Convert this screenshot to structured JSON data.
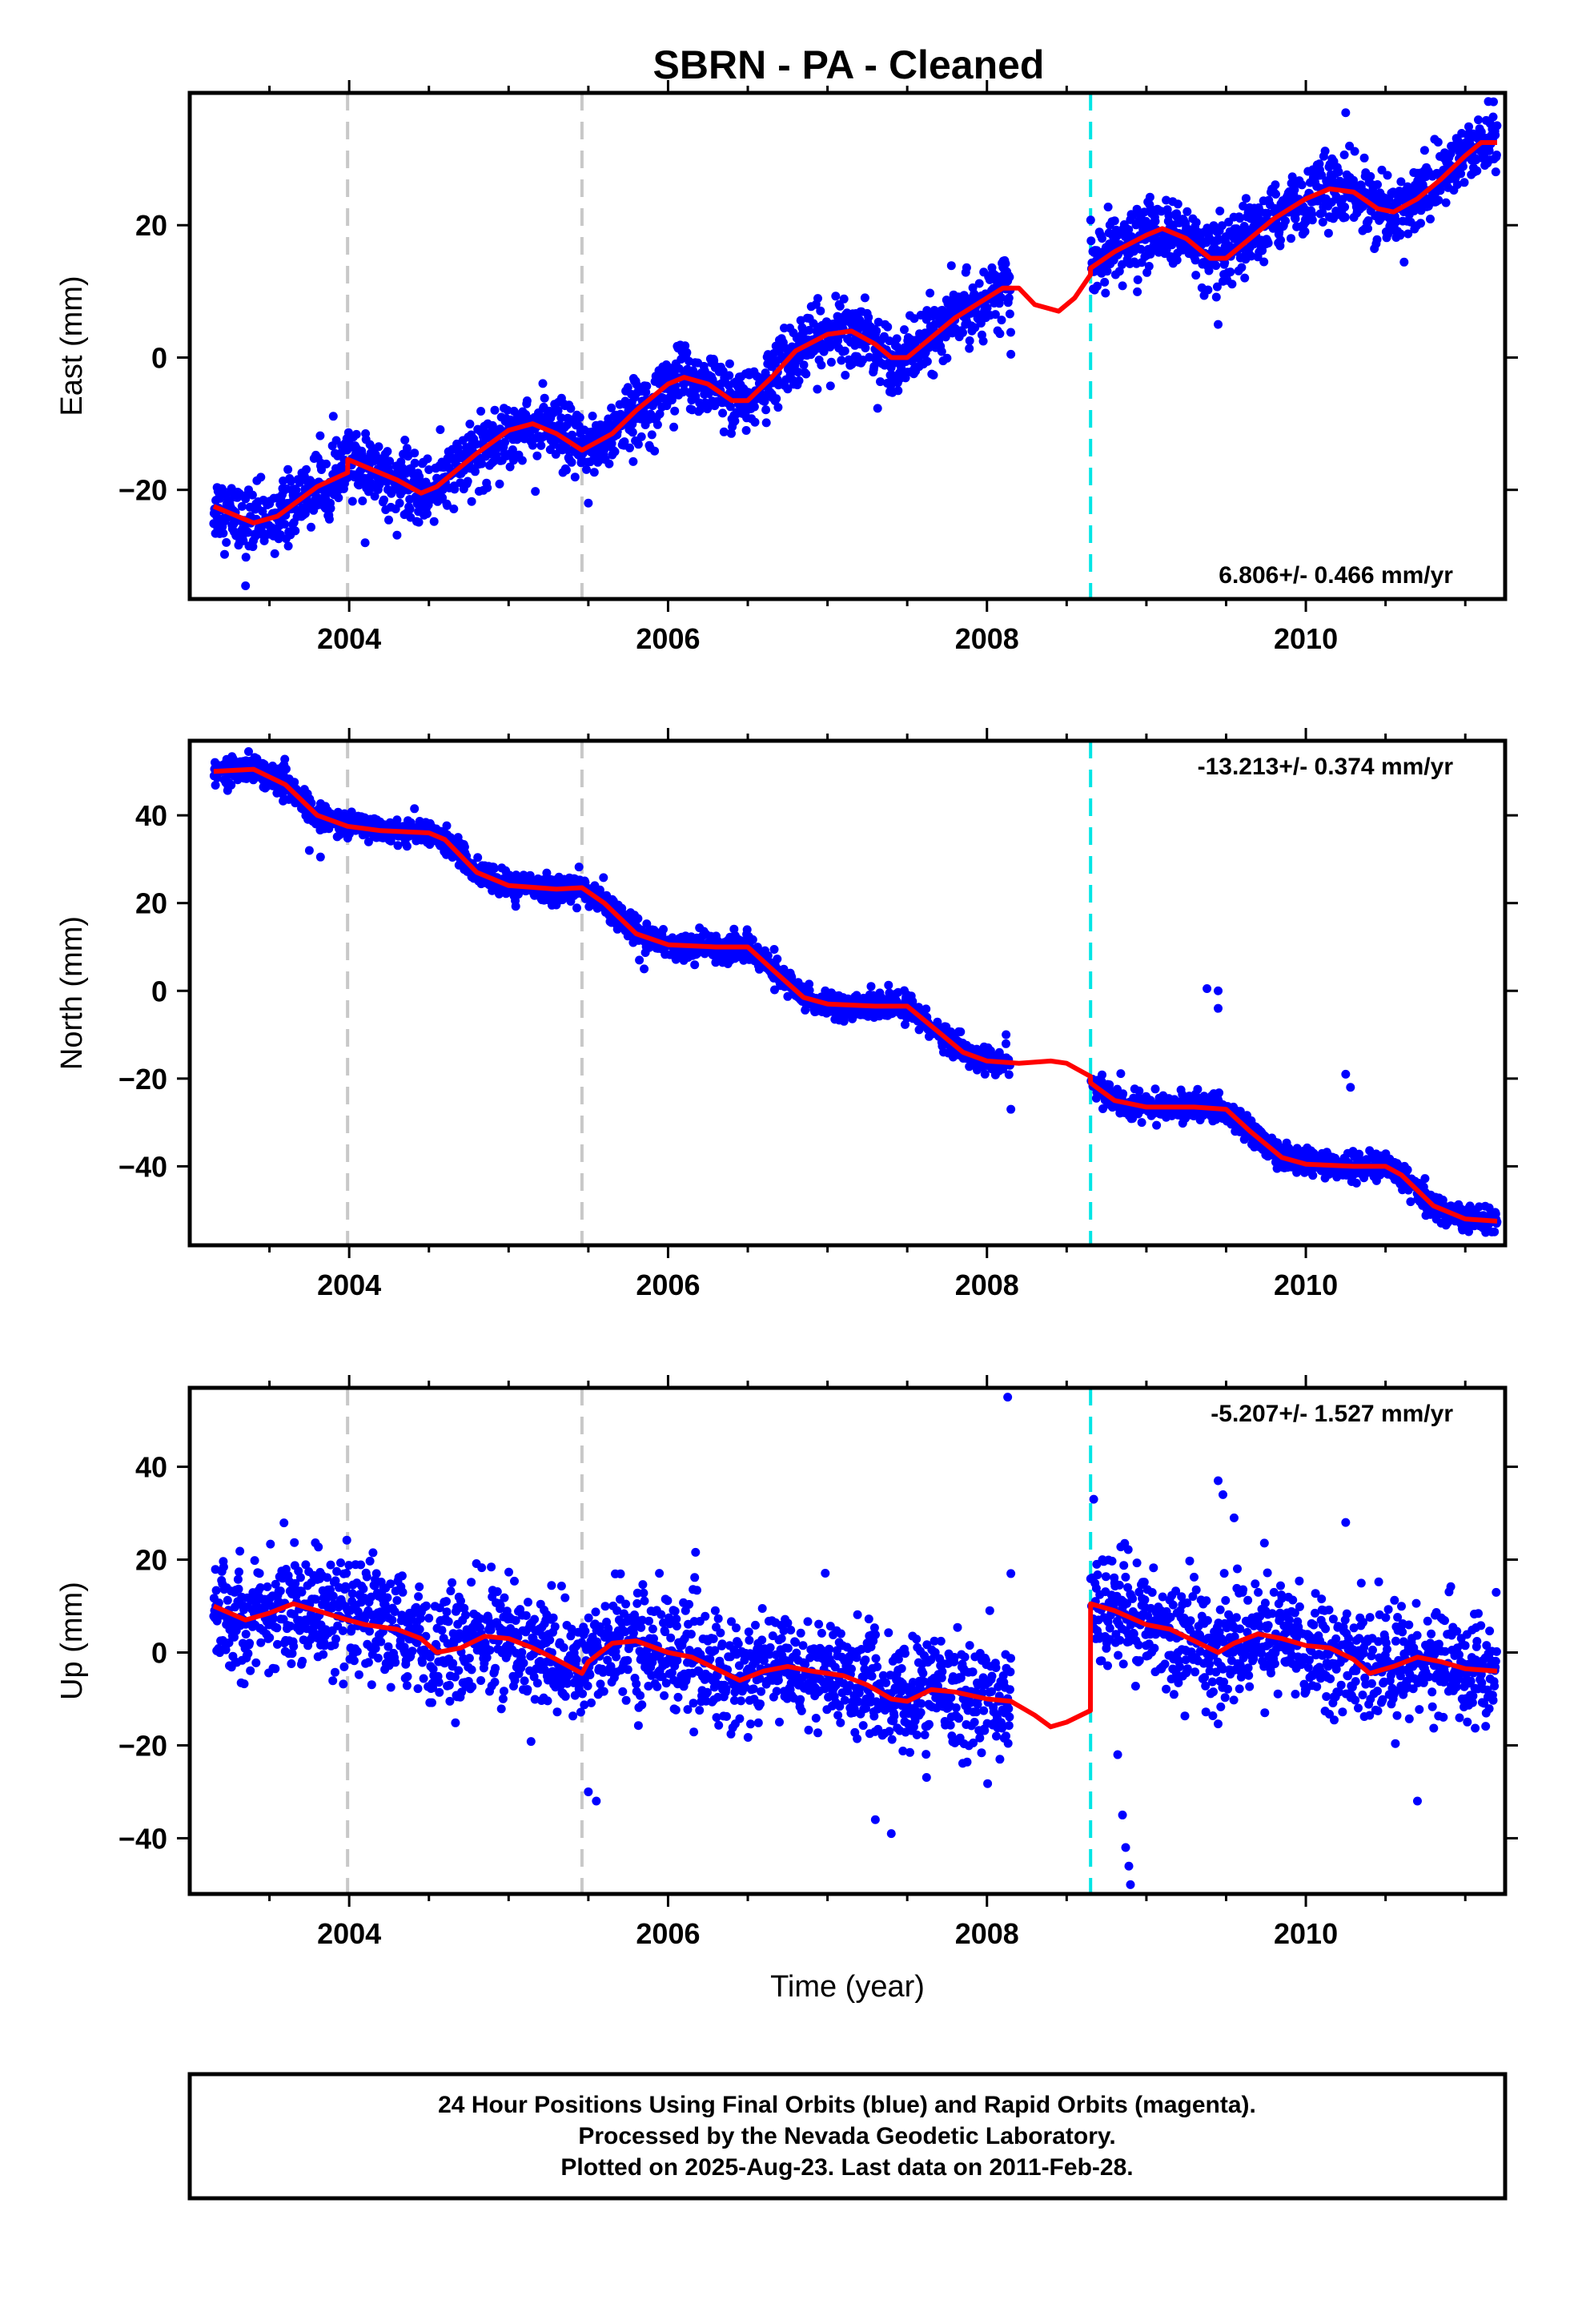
{
  "title": "SBRN  - PA - Cleaned",
  "colors": {
    "points": "#0000ff",
    "model": "#ff0000",
    "offset_equipment": "#c8c8c8",
    "offset_earthquake": "#00e5e5"
  },
  "chart_data": [
    {
      "type": "scatter",
      "panel": "east",
      "ylabel": "East (mm)",
      "xlabel": "",
      "xlim": [
        2003.0,
        2011.25
      ],
      "ylim": [
        -36.5,
        40
      ],
      "xticks": [
        2004,
        2006,
        2008,
        2010
      ],
      "xtick_labels": [
        "2004",
        "2006",
        "2008",
        "2010"
      ],
      "yticks": [
        -20,
        0,
        20
      ],
      "ytick_labels": [
        "−20",
        "0",
        "20"
      ],
      "rate_label": "6.806+/- 0.466 mm/yr",
      "gray_lines": [
        2003.99,
        2005.46
      ],
      "cyan_lines": [
        2008.65
      ],
      "data_gap": [
        2008.15,
        2008.65
      ],
      "scatter": {
        "sigma": 2.5,
        "outliers": [
          [
            2004.1,
            -28
          ],
          [
            2003.35,
            -34.5
          ],
          [
            2005.5,
            -22
          ],
          [
            2008.15,
            0.5
          ],
          [
            2009.45,
            5
          ],
          [
            2010.25,
            37
          ]
        ]
      },
      "model": [
        [
          2003.15,
          -22.5
        ],
        [
          2003.4,
          -25
        ],
        [
          2003.55,
          -24
        ],
        [
          2003.8,
          -19.5
        ],
        [
          2003.99,
          -17.4
        ],
        [
          2003.991,
          -15.4
        ],
        [
          2004.1,
          -16.5
        ],
        [
          2004.3,
          -18.5
        ],
        [
          2004.45,
          -20.5
        ],
        [
          2004.55,
          -19.5
        ],
        [
          2004.8,
          -14.5
        ],
        [
          2005.0,
          -11
        ],
        [
          2005.15,
          -10
        ],
        [
          2005.3,
          -11.5
        ],
        [
          2005.46,
          -14
        ],
        [
          2005.65,
          -11.5
        ],
        [
          2005.8,
          -8
        ],
        [
          2006.0,
          -4
        ],
        [
          2006.1,
          -3
        ],
        [
          2006.25,
          -4
        ],
        [
          2006.4,
          -6.5
        ],
        [
          2006.5,
          -6.5
        ],
        [
          2006.65,
          -3
        ],
        [
          2006.8,
          1
        ],
        [
          2007.0,
          3.5
        ],
        [
          2007.15,
          4
        ],
        [
          2007.3,
          2
        ],
        [
          2007.4,
          0
        ],
        [
          2007.5,
          0
        ],
        [
          2007.65,
          3
        ],
        [
          2007.8,
          6
        ],
        [
          2008.0,
          9
        ],
        [
          2008.1,
          10.5
        ],
        [
          2008.2,
          10.5
        ],
        [
          2008.3,
          8
        ],
        [
          2008.45,
          7
        ],
        [
          2008.55,
          9
        ],
        [
          2008.649,
          12.5
        ],
        [
          2008.65,
          13.5
        ],
        [
          2008.8,
          16
        ],
        [
          2009.0,
          18.5
        ],
        [
          2009.1,
          19.5
        ],
        [
          2009.25,
          18
        ],
        [
          2009.4,
          15
        ],
        [
          2009.5,
          15
        ],
        [
          2009.65,
          18
        ],
        [
          2009.8,
          21
        ],
        [
          2010.0,
          24
        ],
        [
          2010.15,
          25.5
        ],
        [
          2010.3,
          25
        ],
        [
          2010.45,
          22.5
        ],
        [
          2010.55,
          22
        ],
        [
          2010.7,
          24
        ],
        [
          2010.85,
          27
        ],
        [
          2011.0,
          30.5
        ],
        [
          2011.1,
          32.5
        ],
        [
          2011.2,
          32.5
        ]
      ]
    },
    {
      "type": "scatter",
      "panel": "north",
      "ylabel": "North (mm)",
      "xlabel": "",
      "xlim": [
        2003.0,
        2011.25
      ],
      "ylim": [
        -58,
        57
      ],
      "xticks": [
        2004,
        2006,
        2008,
        2010
      ],
      "xtick_labels": [
        "2004",
        "2006",
        "2008",
        "2010"
      ],
      "yticks": [
        -40,
        -20,
        0,
        20,
        40
      ],
      "ytick_labels": [
        "−40",
        "−20",
        "0",
        "20",
        "40"
      ],
      "rate_label": "-13.213+/- 0.374 mm/yr",
      "gray_lines": [
        2003.99,
        2005.46
      ],
      "cyan_lines": [
        2008.65
      ],
      "data_gap": [
        2008.15,
        2008.65
      ],
      "scatter": {
        "sigma": 1.5,
        "outliers": [
          [
            2003.75,
            32
          ],
          [
            2003.82,
            30.5
          ],
          [
            2005.82,
            7
          ],
          [
            2005.85,
            5
          ],
          [
            2008.12,
            -10
          ],
          [
            2008.15,
            -27
          ],
          [
            2009.38,
            0.5
          ],
          [
            2009.45,
            0
          ],
          [
            2009.45,
            -4
          ],
          [
            2010.25,
            -19
          ],
          [
            2010.28,
            -22
          ]
        ]
      },
      "model": [
        [
          2003.15,
          50
        ],
        [
          2003.4,
          50.5
        ],
        [
          2003.6,
          47
        ],
        [
          2003.8,
          40
        ],
        [
          2003.99,
          37.5
        ],
        [
          2004.2,
          36.5
        ],
        [
          2004.5,
          36
        ],
        [
          2004.6,
          34.5
        ],
        [
          2004.8,
          27
        ],
        [
          2005.0,
          24
        ],
        [
          2005.3,
          23.2
        ],
        [
          2005.46,
          23.5
        ],
        [
          2005.6,
          20
        ],
        [
          2005.8,
          13
        ],
        [
          2006.0,
          10.5
        ],
        [
          2006.3,
          10
        ],
        [
          2006.5,
          10
        ],
        [
          2006.65,
          5
        ],
        [
          2006.85,
          -1.5
        ],
        [
          2007.0,
          -3
        ],
        [
          2007.3,
          -3.5
        ],
        [
          2007.5,
          -3.5
        ],
        [
          2007.65,
          -8
        ],
        [
          2007.85,
          -14
        ],
        [
          2008.0,
          -16
        ],
        [
          2008.2,
          -16.5
        ],
        [
          2008.4,
          -16
        ],
        [
          2008.5,
          -16.5
        ],
        [
          2008.649,
          -19.5
        ],
        [
          2008.65,
          -21
        ],
        [
          2008.8,
          -25
        ],
        [
          2009.0,
          -26.5
        ],
        [
          2009.3,
          -26.5
        ],
        [
          2009.5,
          -27
        ],
        [
          2009.65,
          -32
        ],
        [
          2009.85,
          -38
        ],
        [
          2010.0,
          -39.5
        ],
        [
          2010.3,
          -40
        ],
        [
          2010.5,
          -40
        ],
        [
          2010.6,
          -42
        ],
        [
          2010.8,
          -49
        ],
        [
          2011.0,
          -52
        ],
        [
          2011.2,
          -52.5
        ]
      ]
    },
    {
      "type": "scatter",
      "panel": "up",
      "ylabel": "Up (mm)",
      "xlabel": "Time (year)",
      "xlim": [
        2003.0,
        2011.25
      ],
      "ylim": [
        -52,
        57
      ],
      "xticks": [
        2004,
        2006,
        2008,
        2010
      ],
      "xtick_labels": [
        "2004",
        "2006",
        "2008",
        "2010"
      ],
      "yticks": [
        -40,
        -20,
        0,
        20,
        40
      ],
      "ytick_labels": [
        "−40",
        "−20",
        "0",
        "20",
        "40"
      ],
      "rate_label": "-5.207+/- 1.527 mm/yr",
      "gray_lines": [
        2003.99,
        2005.46
      ],
      "cyan_lines": [
        2008.65
      ],
      "data_gap": [
        2008.15,
        2008.65
      ],
      "scatter": {
        "sigma": 6,
        "outliers": [
          [
            2008.13,
            55
          ],
          [
            2008.15,
            17
          ],
          [
            2005.5,
            -30
          ],
          [
            2005.55,
            -32
          ],
          [
            2007.3,
            -36
          ],
          [
            2007.4,
            -39
          ],
          [
            2008.82,
            -22
          ],
          [
            2008.85,
            -35
          ],
          [
            2008.87,
            -42
          ],
          [
            2008.89,
            -46
          ],
          [
            2008.9,
            -50
          ],
          [
            2009.45,
            37
          ],
          [
            2009.48,
            34
          ],
          [
            2009.55,
            29
          ],
          [
            2010.25,
            28
          ],
          [
            2010.7,
            -32
          ]
        ]
      },
      "model": [
        [
          2003.15,
          10
        ],
        [
          2003.35,
          7
        ],
        [
          2003.5,
          8.5
        ],
        [
          2003.65,
          10.5
        ],
        [
          2003.8,
          9
        ],
        [
          2003.99,
          7
        ],
        [
          2004.1,
          6
        ],
        [
          2004.3,
          5
        ],
        [
          2004.45,
          3
        ],
        [
          2004.55,
          0
        ],
        [
          2004.7,
          1
        ],
        [
          2004.85,
          3.5
        ],
        [
          2005.0,
          3
        ],
        [
          2005.15,
          1
        ],
        [
          2005.3,
          -1.5
        ],
        [
          2005.46,
          -4.5
        ],
        [
          2005.5,
          -2
        ],
        [
          2005.65,
          2
        ],
        [
          2005.8,
          2.5
        ],
        [
          2006.0,
          0
        ],
        [
          2006.15,
          -1
        ],
        [
          2006.3,
          -3.5
        ],
        [
          2006.45,
          -6
        ],
        [
          2006.6,
          -4
        ],
        [
          2006.75,
          -3
        ],
        [
          2006.9,
          -4
        ],
        [
          2007.1,
          -5
        ],
        [
          2007.25,
          -7
        ],
        [
          2007.4,
          -10
        ],
        [
          2007.5,
          -10.5
        ],
        [
          2007.65,
          -8
        ],
        [
          2007.8,
          -8.5
        ],
        [
          2008.0,
          -10
        ],
        [
          2008.15,
          -10.5
        ],
        [
          2008.3,
          -13.5
        ],
        [
          2008.4,
          -16
        ],
        [
          2008.5,
          -15
        ],
        [
          2008.649,
          -12.5
        ],
        [
          2008.65,
          10.5
        ],
        [
          2008.8,
          9
        ],
        [
          2009.0,
          6
        ],
        [
          2009.15,
          5
        ],
        [
          2009.3,
          2.5
        ],
        [
          2009.45,
          0
        ],
        [
          2009.55,
          2
        ],
        [
          2009.7,
          4
        ],
        [
          2009.85,
          3
        ],
        [
          2010.0,
          1.5
        ],
        [
          2010.15,
          1
        ],
        [
          2010.3,
          -1.5
        ],
        [
          2010.4,
          -4.5
        ],
        [
          2010.55,
          -3
        ],
        [
          2010.7,
          -1
        ],
        [
          2010.85,
          -2
        ],
        [
          2011.0,
          -3.5
        ],
        [
          2011.2,
          -4
        ]
      ]
    }
  ],
  "footer": [
    "24 Hour Positions Using Final Orbits (blue) and Rapid Orbits (magenta).",
    "Processed by the Nevada Geodetic Laboratory.",
    "Plotted on 2025-Aug-23. Last data on 2011-Feb-28."
  ]
}
